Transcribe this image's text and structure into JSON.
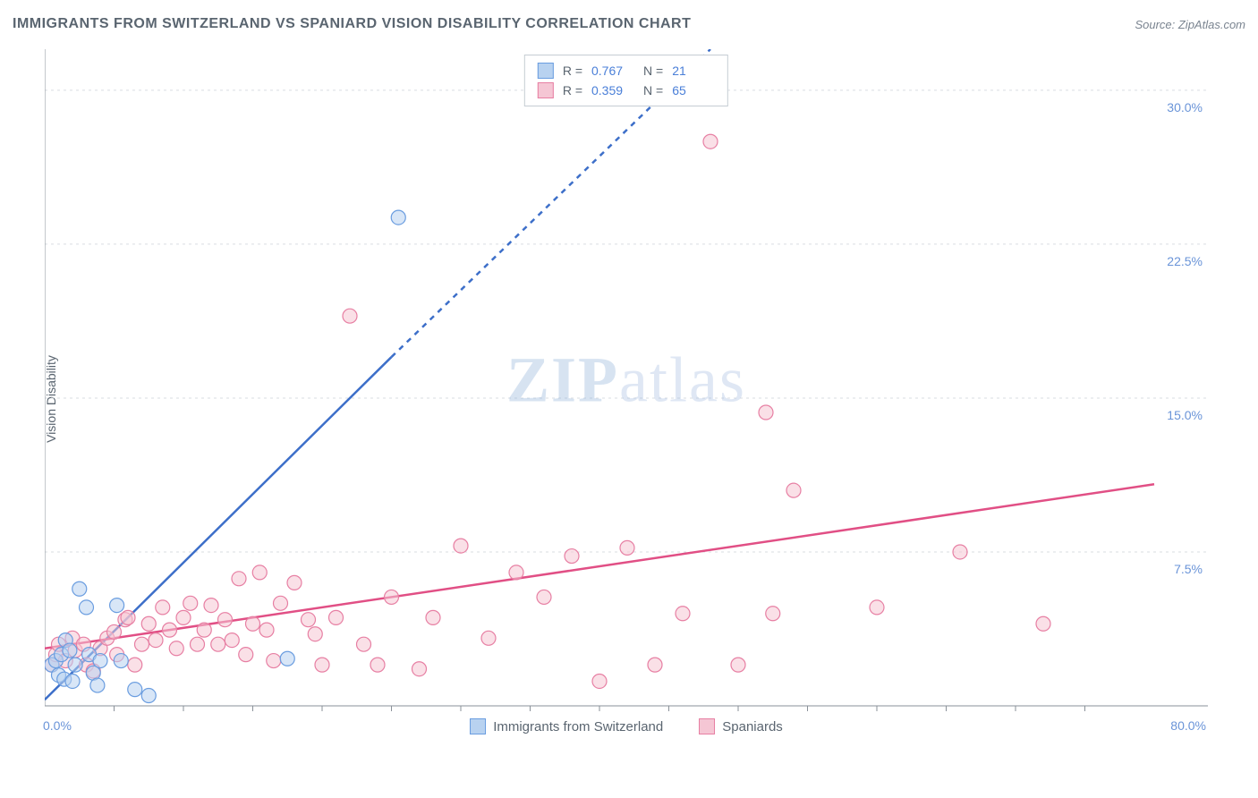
{
  "title": "IMMIGRANTS FROM SWITZERLAND VS SPANIARD VISION DISABILITY CORRELATION CHART",
  "source_label": "Source: ZipAtlas.com",
  "y_axis_label": "Vision Disability",
  "watermark": {
    "part1": "ZIP",
    "part2": "atlas"
  },
  "chart": {
    "type": "scatter",
    "background_color": "#ffffff",
    "grid_color": "#d9dde2",
    "axis_line_color": "#8a9199",
    "xlim": [
      0,
      80
    ],
    "ylim": [
      0,
      32
    ],
    "x_origin_label": "0.0%",
    "x_max_label": "80.0%",
    "y_tick_values": [
      7.5,
      15.0,
      22.5,
      30.0
    ],
    "y_tick_labels": [
      "7.5%",
      "15.0%",
      "22.5%",
      "30.0%"
    ],
    "x_minor_ticks": [
      5,
      10,
      15,
      20,
      25,
      30,
      35,
      40,
      45,
      50,
      55,
      60,
      65,
      70,
      75
    ],
    "marker_radius": 8,
    "marker_opacity": 0.55,
    "marker_stroke_width": 1.2,
    "legend_tick_fontsize": 14,
    "axis_label_fontsize": 14
  },
  "series": [
    {
      "name": "Immigrants from Switzerland",
      "color_fill": "#b8d2f0",
      "color_stroke": "#6a9de0",
      "R": "0.767",
      "N": "21",
      "regression": {
        "x1": 0,
        "y1": 0.3,
        "x2": 25,
        "y2": 17,
        "dash_from_x": 25,
        "dash_to_x": 48,
        "dash_to_y": 32
      },
      "line_color": "#3d6fc9",
      "line_width": 2.5,
      "points": [
        [
          0.5,
          2.0
        ],
        [
          0.8,
          2.2
        ],
        [
          1.0,
          1.5
        ],
        [
          1.2,
          2.5
        ],
        [
          1.4,
          1.3
        ],
        [
          1.5,
          3.2
        ],
        [
          1.8,
          2.7
        ],
        [
          2.0,
          1.2
        ],
        [
          2.2,
          2.0
        ],
        [
          2.5,
          5.7
        ],
        [
          3.0,
          4.8
        ],
        [
          3.2,
          2.5
        ],
        [
          3.5,
          1.6
        ],
        [
          3.8,
          1.0
        ],
        [
          4.0,
          2.2
        ],
        [
          5.2,
          4.9
        ],
        [
          5.5,
          2.2
        ],
        [
          6.5,
          0.8
        ],
        [
          7.5,
          0.5
        ],
        [
          17.5,
          2.3
        ],
        [
          25.5,
          23.8
        ]
      ]
    },
    {
      "name": "Spaniards",
      "color_fill": "#f5c6d4",
      "color_stroke": "#e77fa3",
      "R": "0.359",
      "N": "65",
      "regression": {
        "x1": 0,
        "y1": 2.8,
        "x2": 80,
        "y2": 10.8
      },
      "line_color": "#e14f85",
      "line_width": 2.5,
      "points": [
        [
          0.5,
          2.0
        ],
        [
          0.8,
          2.5
        ],
        [
          1.0,
          3.0
        ],
        [
          1.5,
          2.2
        ],
        [
          2.0,
          3.3
        ],
        [
          2.2,
          2.7
        ],
        [
          2.8,
          3.0
        ],
        [
          3.0,
          2.0
        ],
        [
          3.5,
          1.7
        ],
        [
          4.0,
          2.8
        ],
        [
          4.5,
          3.3
        ],
        [
          5.0,
          3.6
        ],
        [
          5.2,
          2.5
        ],
        [
          5.8,
          4.2
        ],
        [
          6.0,
          4.3
        ],
        [
          6.5,
          2.0
        ],
        [
          7.0,
          3.0
        ],
        [
          7.5,
          4.0
        ],
        [
          8.0,
          3.2
        ],
        [
          8.5,
          4.8
        ],
        [
          9.0,
          3.7
        ],
        [
          9.5,
          2.8
        ],
        [
          10.0,
          4.3
        ],
        [
          10.5,
          5.0
        ],
        [
          11.0,
          3.0
        ],
        [
          11.5,
          3.7
        ],
        [
          12.0,
          4.9
        ],
        [
          12.5,
          3.0
        ],
        [
          13.0,
          4.2
        ],
        [
          13.5,
          3.2
        ],
        [
          14.0,
          6.2
        ],
        [
          14.5,
          2.5
        ],
        [
          15.0,
          4.0
        ],
        [
          15.5,
          6.5
        ],
        [
          16.0,
          3.7
        ],
        [
          16.5,
          2.2
        ],
        [
          17.0,
          5.0
        ],
        [
          18.0,
          6.0
        ],
        [
          19.0,
          4.2
        ],
        [
          19.5,
          3.5
        ],
        [
          20.0,
          2.0
        ],
        [
          21.0,
          4.3
        ],
        [
          22.0,
          19.0
        ],
        [
          23.0,
          3.0
        ],
        [
          24.0,
          2.0
        ],
        [
          25.0,
          5.3
        ],
        [
          27.0,
          1.8
        ],
        [
          28.0,
          4.3
        ],
        [
          30.0,
          7.8
        ],
        [
          32.0,
          3.3
        ],
        [
          34.0,
          6.5
        ],
        [
          36.0,
          5.3
        ],
        [
          38.0,
          7.3
        ],
        [
          40.0,
          1.2
        ],
        [
          42.0,
          7.7
        ],
        [
          44.0,
          2.0
        ],
        [
          46.0,
          4.5
        ],
        [
          48.0,
          27.5
        ],
        [
          50.0,
          2.0
        ],
        [
          52.0,
          14.3
        ],
        [
          52.5,
          4.5
        ],
        [
          54.0,
          10.5
        ],
        [
          60.0,
          4.8
        ],
        [
          66.0,
          7.5
        ],
        [
          72.0,
          4.0
        ]
      ]
    }
  ],
  "stats_labels": {
    "R": "R =",
    "N": "N ="
  },
  "legend": [
    {
      "label": "Immigrants from Switzerland",
      "fill": "#b8d2f0",
      "stroke": "#6a9de0"
    },
    {
      "label": "Spaniards",
      "fill": "#f5c6d4",
      "stroke": "#e77fa3"
    }
  ]
}
